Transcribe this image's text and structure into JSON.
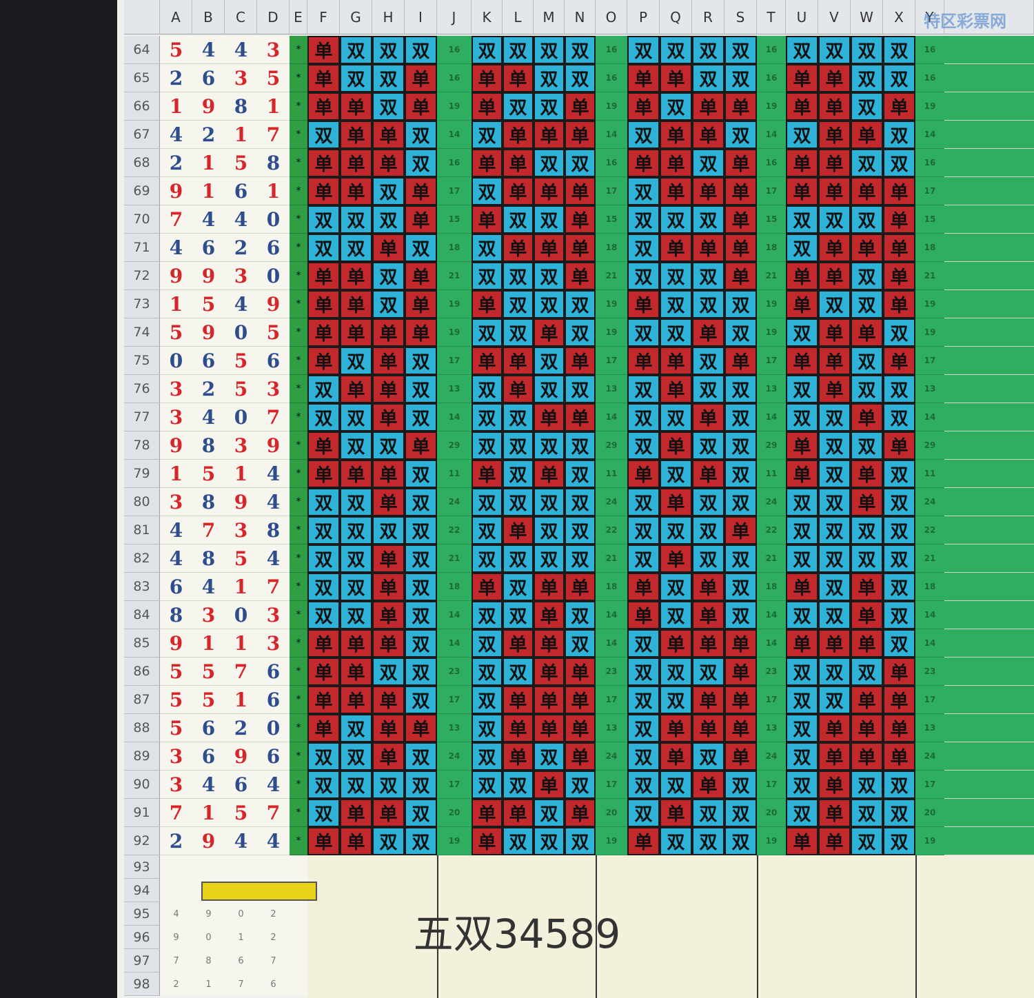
{
  "columns": [
    "A",
    "B",
    "C",
    "D",
    "E",
    "F",
    "G",
    "H",
    "I",
    "J",
    "K",
    "L",
    "M",
    "N",
    "O",
    "P",
    "Q",
    "R",
    "S",
    "T",
    "U",
    "V",
    "W",
    "X",
    "Y"
  ],
  "colors": {
    "单": "#c3282c",
    "双": "#2eb2d8"
  },
  "rows": [
    {
      "num": "64",
      "digits": [
        5,
        4,
        4,
        3
      ],
      "mark": "*",
      "sums": [
        16,
        16,
        16,
        16
      ],
      "groups": [
        [
          "单",
          "双",
          "双",
          "双"
        ],
        [
          "双",
          "双",
          "双",
          "双"
        ],
        [
          "双",
          "双",
          "双",
          "双"
        ],
        [
          "双",
          "双",
          "双",
          "双"
        ]
      ]
    },
    {
      "num": "65",
      "digits": [
        2,
        6,
        3,
        5
      ],
      "mark": "*",
      "sums": [
        16,
        16,
        16,
        16
      ],
      "groups": [
        [
          "单",
          "双",
          "双",
          "单"
        ],
        [
          "单",
          "单",
          "双",
          "双"
        ],
        [
          "单",
          "单",
          "双",
          "双"
        ],
        [
          "单",
          "单",
          "双",
          "双"
        ]
      ]
    },
    {
      "num": "66",
      "digits": [
        1,
        9,
        8,
        1
      ],
      "mark": "*",
      "sums": [
        19,
        19,
        19,
        19
      ],
      "groups": [
        [
          "单",
          "单",
          "双",
          "单"
        ],
        [
          "单",
          "双",
          "双",
          "单"
        ],
        [
          "单",
          "双",
          "单",
          "单"
        ],
        [
          "单",
          "单",
          "双",
          "单"
        ]
      ]
    },
    {
      "num": "67",
      "digits": [
        4,
        2,
        1,
        7
      ],
      "mark": "*",
      "sums": [
        14,
        14,
        14,
        14
      ],
      "groups": [
        [
          "双",
          "单",
          "单",
          "双"
        ],
        [
          "双",
          "单",
          "单",
          "单"
        ],
        [
          "双",
          "单",
          "单",
          "双"
        ],
        [
          "双",
          "单",
          "单",
          "双"
        ]
      ]
    },
    {
      "num": "68",
      "digits": [
        2,
        1,
        5,
        8
      ],
      "mark": "*",
      "sums": [
        16,
        16,
        16,
        16
      ],
      "groups": [
        [
          "单",
          "单",
          "单",
          "双"
        ],
        [
          "单",
          "单",
          "双",
          "双"
        ],
        [
          "单",
          "单",
          "双",
          "单"
        ],
        [
          "单",
          "单",
          "双",
          "双"
        ]
      ]
    },
    {
      "num": "69",
      "digits": [
        9,
        1,
        6,
        1
      ],
      "mark": "*",
      "sums": [
        17,
        17,
        17,
        17
      ],
      "groups": [
        [
          "单",
          "单",
          "双",
          "单"
        ],
        [
          "双",
          "单",
          "单",
          "单"
        ],
        [
          "双",
          "单",
          "单",
          "单"
        ],
        [
          "单",
          "单",
          "单",
          "单"
        ]
      ]
    },
    {
      "num": "70",
      "digits": [
        7,
        4,
        4,
        0
      ],
      "mark": "*",
      "sums": [
        15,
        15,
        15,
        15
      ],
      "groups": [
        [
          "双",
          "双",
          "双",
          "单"
        ],
        [
          "单",
          "双",
          "双",
          "单"
        ],
        [
          "双",
          "双",
          "双",
          "单"
        ],
        [
          "双",
          "双",
          "双",
          "单"
        ]
      ]
    },
    {
      "num": "71",
      "digits": [
        4,
        6,
        2,
        6
      ],
      "mark": "*",
      "sums": [
        18,
        18,
        18,
        18
      ],
      "groups": [
        [
          "双",
          "双",
          "单",
          "双"
        ],
        [
          "双",
          "单",
          "单",
          "单"
        ],
        [
          "双",
          "单",
          "单",
          "单"
        ],
        [
          "双",
          "单",
          "单",
          "单"
        ]
      ]
    },
    {
      "num": "72",
      "digits": [
        9,
        9,
        3,
        0
      ],
      "mark": "*",
      "sums": [
        21,
        21,
        21,
        21
      ],
      "groups": [
        [
          "单",
          "单",
          "双",
          "单"
        ],
        [
          "双",
          "双",
          "双",
          "单"
        ],
        [
          "双",
          "双",
          "双",
          "单"
        ],
        [
          "单",
          "单",
          "双",
          "单"
        ]
      ]
    },
    {
      "num": "73",
      "digits": [
        1,
        5,
        4,
        9
      ],
      "mark": "*",
      "sums": [
        19,
        19,
        19,
        19
      ],
      "groups": [
        [
          "单",
          "单",
          "双",
          "单"
        ],
        [
          "单",
          "双",
          "双",
          "双"
        ],
        [
          "单",
          "双",
          "双",
          "双"
        ],
        [
          "单",
          "双",
          "双",
          "单"
        ]
      ]
    },
    {
      "num": "74",
      "digits": [
        5,
        9,
        0,
        5
      ],
      "mark": "*",
      "sums": [
        19,
        19,
        19,
        19
      ],
      "groups": [
        [
          "单",
          "单",
          "单",
          "单"
        ],
        [
          "双",
          "双",
          "单",
          "双"
        ],
        [
          "双",
          "双",
          "单",
          "双"
        ],
        [
          "双",
          "单",
          "单",
          "双"
        ]
      ]
    },
    {
      "num": "75",
      "digits": [
        0,
        6,
        5,
        6
      ],
      "mark": "*",
      "sums": [
        17,
        17,
        17,
        17
      ],
      "groups": [
        [
          "单",
          "双",
          "单",
          "双"
        ],
        [
          "单",
          "单",
          "双",
          "单"
        ],
        [
          "单",
          "单",
          "双",
          "单"
        ],
        [
          "单",
          "单",
          "双",
          "单"
        ]
      ]
    },
    {
      "num": "76",
      "digits": [
        3,
        2,
        5,
        3
      ],
      "mark": "*",
      "sums": [
        13,
        13,
        13,
        13
      ],
      "groups": [
        [
          "双",
          "单",
          "单",
          "双"
        ],
        [
          "双",
          "单",
          "双",
          "双"
        ],
        [
          "双",
          "单",
          "双",
          "双"
        ],
        [
          "双",
          "单",
          "双",
          "双"
        ]
      ]
    },
    {
      "num": "77",
      "digits": [
        3,
        4,
        0,
        7
      ],
      "mark": "*",
      "sums": [
        14,
        14,
        14,
        14
      ],
      "groups": [
        [
          "双",
          "双",
          "单",
          "双"
        ],
        [
          "双",
          "双",
          "单",
          "单"
        ],
        [
          "双",
          "双",
          "单",
          "双"
        ],
        [
          "双",
          "双",
          "单",
          "双"
        ]
      ]
    },
    {
      "num": "78",
      "digits": [
        9,
        8,
        3,
        9
      ],
      "mark": "*",
      "sums": [
        29,
        29,
        29,
        29
      ],
      "groups": [
        [
          "单",
          "双",
          "双",
          "单"
        ],
        [
          "双",
          "双",
          "双",
          "双"
        ],
        [
          "双",
          "单",
          "双",
          "双"
        ],
        [
          "单",
          "双",
          "双",
          "单"
        ]
      ]
    },
    {
      "num": "79",
      "digits": [
        1,
        5,
        1,
        4
      ],
      "mark": "*",
      "sums": [
        11,
        11,
        11,
        11
      ],
      "groups": [
        [
          "单",
          "单",
          "单",
          "双"
        ],
        [
          "单",
          "双",
          "单",
          "双"
        ],
        [
          "单",
          "双",
          "单",
          "双"
        ],
        [
          "单",
          "双",
          "单",
          "双"
        ]
      ]
    },
    {
      "num": "80",
      "digits": [
        3,
        8,
        9,
        4
      ],
      "mark": "*",
      "sums": [
        24,
        24,
        24,
        24
      ],
      "groups": [
        [
          "双",
          "双",
          "单",
          "双"
        ],
        [
          "双",
          "双",
          "双",
          "双"
        ],
        [
          "双",
          "单",
          "双",
          "双"
        ],
        [
          "双",
          "双",
          "单",
          "双"
        ]
      ]
    },
    {
      "num": "81",
      "digits": [
        4,
        7,
        3,
        8
      ],
      "mark": "*",
      "sums": [
        22,
        22,
        22,
        22
      ],
      "groups": [
        [
          "双",
          "双",
          "双",
          "双"
        ],
        [
          "双",
          "单",
          "双",
          "双"
        ],
        [
          "双",
          "双",
          "双",
          "单"
        ],
        [
          "双",
          "双",
          "双",
          "双"
        ]
      ]
    },
    {
      "num": "82",
      "digits": [
        4,
        8,
        5,
        4
      ],
      "mark": "*",
      "sums": [
        21,
        21,
        21,
        21
      ],
      "groups": [
        [
          "双",
          "双",
          "单",
          "双"
        ],
        [
          "双",
          "双",
          "双",
          "双"
        ],
        [
          "双",
          "单",
          "双",
          "双"
        ],
        [
          "双",
          "双",
          "双",
          "双"
        ]
      ]
    },
    {
      "num": "83",
      "digits": [
        6,
        4,
        1,
        7
      ],
      "mark": "*",
      "sums": [
        18,
        18,
        18,
        18
      ],
      "groups": [
        [
          "双",
          "双",
          "单",
          "双"
        ],
        [
          "单",
          "双",
          "单",
          "单"
        ],
        [
          "单",
          "双",
          "单",
          "双"
        ],
        [
          "单",
          "双",
          "单",
          "双"
        ]
      ]
    },
    {
      "num": "84",
      "digits": [
        8,
        3,
        0,
        3
      ],
      "mark": "*",
      "sums": [
        14,
        14,
        14,
        14
      ],
      "groups": [
        [
          "双",
          "双",
          "单",
          "双"
        ],
        [
          "双",
          "双",
          "单",
          "双"
        ],
        [
          "单",
          "双",
          "单",
          "双"
        ],
        [
          "双",
          "双",
          "单",
          "双"
        ]
      ]
    },
    {
      "num": "85",
      "digits": [
        9,
        1,
        1,
        3
      ],
      "mark": "*",
      "sums": [
        14,
        14,
        14,
        14
      ],
      "groups": [
        [
          "单",
          "单",
          "单",
          "双"
        ],
        [
          "双",
          "单",
          "单",
          "双"
        ],
        [
          "双",
          "单",
          "单",
          "单"
        ],
        [
          "单",
          "单",
          "单",
          "双"
        ]
      ]
    },
    {
      "num": "86",
      "digits": [
        5,
        5,
        7,
        6
      ],
      "mark": "*",
      "sums": [
        23,
        23,
        23,
        23
      ],
      "groups": [
        [
          "单",
          "单",
          "双",
          "双"
        ],
        [
          "双",
          "双",
          "单",
          "单"
        ],
        [
          "双",
          "双",
          "双",
          "单"
        ],
        [
          "双",
          "双",
          "双",
          "单"
        ]
      ]
    },
    {
      "num": "87",
      "digits": [
        5,
        5,
        1,
        6
      ],
      "mark": "*",
      "sums": [
        17,
        17,
        17,
        17
      ],
      "groups": [
        [
          "单",
          "单",
          "单",
          "双"
        ],
        [
          "双",
          "单",
          "单",
          "单"
        ],
        [
          "双",
          "双",
          "单",
          "单"
        ],
        [
          "双",
          "双",
          "单",
          "单"
        ]
      ]
    },
    {
      "num": "88",
      "digits": [
        5,
        6,
        2,
        0
      ],
      "mark": "*",
      "sums": [
        13,
        13,
        13,
        13
      ],
      "groups": [
        [
          "单",
          "双",
          "单",
          "单"
        ],
        [
          "双",
          "单",
          "单",
          "单"
        ],
        [
          "双",
          "单",
          "单",
          "单"
        ],
        [
          "双",
          "单",
          "单",
          "单"
        ]
      ]
    },
    {
      "num": "89",
      "digits": [
        3,
        6,
        9,
        6
      ],
      "mark": "*",
      "sums": [
        24,
        24,
        24,
        24
      ],
      "groups": [
        [
          "双",
          "双",
          "单",
          "双"
        ],
        [
          "双",
          "单",
          "双",
          "单"
        ],
        [
          "双",
          "单",
          "双",
          "单"
        ],
        [
          "双",
          "单",
          "单",
          "单"
        ]
      ]
    },
    {
      "num": "90",
      "digits": [
        3,
        4,
        6,
        4
      ],
      "mark": "*",
      "sums": [
        17,
        17,
        17,
        17
      ],
      "groups": [
        [
          "双",
          "双",
          "双",
          "双"
        ],
        [
          "双",
          "双",
          "单",
          "双"
        ],
        [
          "双",
          "双",
          "单",
          "双"
        ],
        [
          "双",
          "单",
          "双",
          "双"
        ]
      ]
    },
    {
      "num": "91",
      "digits": [
        7,
        1,
        5,
        7
      ],
      "mark": "*",
      "sums": [
        20,
        20,
        20,
        20
      ],
      "groups": [
        [
          "双",
          "单",
          "单",
          "双"
        ],
        [
          "单",
          "单",
          "双",
          "单"
        ],
        [
          "双",
          "单",
          "双",
          "双"
        ],
        [
          "双",
          "单",
          "双",
          "双"
        ]
      ]
    },
    {
      "num": "92",
      "digits": [
        2,
        9,
        4,
        4
      ],
      "mark": "*",
      "sums": [
        19,
        19,
        19,
        19
      ],
      "groups": [
        [
          "单",
          "单",
          "双",
          "双"
        ],
        [
          "单",
          "双",
          "双",
          "双"
        ],
        [
          "单",
          "双",
          "双",
          "双"
        ],
        [
          "单",
          "单",
          "双",
          "双"
        ]
      ]
    }
  ],
  "bottom_rows": [
    {
      "num": "93",
      "digits": []
    },
    {
      "num": "94",
      "digits": []
    },
    {
      "num": "95",
      "digits": [
        4,
        9,
        0,
        2
      ]
    },
    {
      "num": "96",
      "digits": [
        9,
        0,
        1,
        2
      ]
    },
    {
      "num": "97",
      "digits": [
        7,
        8,
        6,
        7
      ]
    },
    {
      "num": "98",
      "digits": [
        2,
        1,
        7,
        6
      ]
    }
  ],
  "overlay": "五双34589",
  "watermark": "特区彩票网"
}
